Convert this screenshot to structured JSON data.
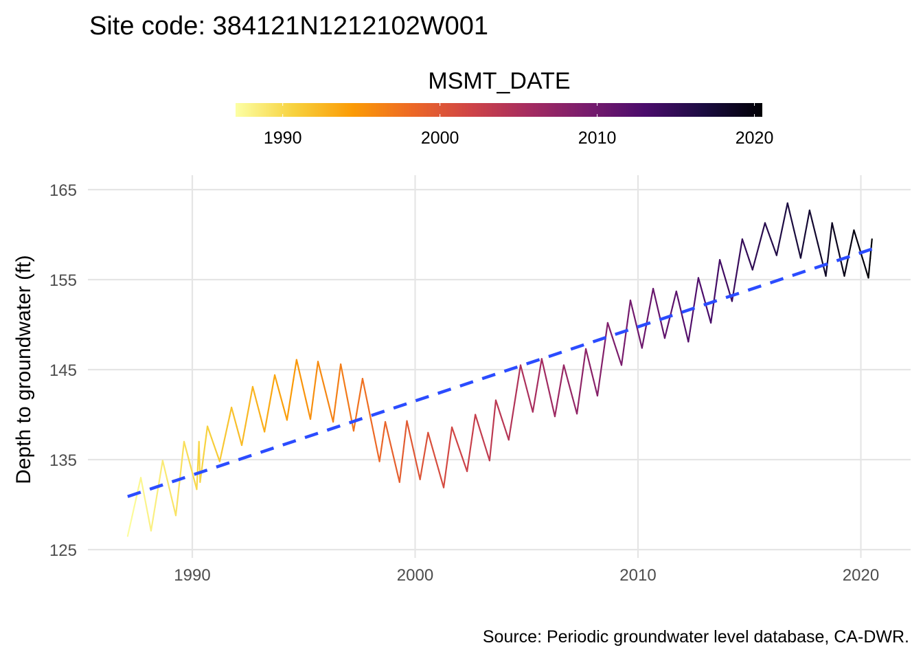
{
  "chart_data": {
    "type": "line",
    "title": "Site code: 384121N1212102W001",
    "xlabel": "",
    "ylabel": "Depth to groundwater (ft)",
    "caption": "Source: Periodic groundwater level database, CA-DWR.",
    "xlim": [
      1985.5,
      2022.2
    ],
    "ylim": [
      125,
      166.5
    ],
    "x_ticks": [
      1990,
      2000,
      2010,
      2020
    ],
    "x_tick_labels": [
      "1990",
      "2000",
      "2010",
      "2020"
    ],
    "y_ticks": [
      125,
      135,
      145,
      155,
      165
    ],
    "y_tick_labels": [
      "125",
      "135",
      "145",
      "155",
      "165"
    ],
    "grid": true,
    "legend": {
      "title": "MSMT_DATE",
      "placement": "top",
      "type": "colorbar",
      "range": [
        1987.0,
        2020.5
      ],
      "ticks": [
        1990,
        2000,
        2010,
        2020
      ],
      "tick_labels": [
        "1990",
        "2000",
        "2010",
        "2020"
      ],
      "colormap": [
        "#fcffa4",
        "#f7d13d",
        "#fb9b06",
        "#ed6925",
        "#cf4446",
        "#a52c60",
        "#781c6d",
        "#4a0c6b",
        "#1b0c41",
        "#000004"
      ]
    },
    "series": [
      {
        "name": "Depth to groundwater",
        "x": [
          1987.1,
          1987.69,
          1988.15,
          1988.67,
          1989.26,
          1989.63,
          1990.2,
          1990.3,
          1990.35,
          1990.68,
          1991.23,
          1991.76,
          1992.22,
          1992.71,
          1993.24,
          1993.7,
          1994.25,
          1994.68,
          1995.3,
          1995.64,
          1996.32,
          1996.66,
          1997.24,
          1997.64,
          1998.4,
          1998.66,
          1999.3,
          1999.63,
          2000.22,
          2000.58,
          2001.28,
          2001.65,
          2002.33,
          2002.7,
          2003.34,
          2003.62,
          2004.2,
          2004.73,
          2005.28,
          2005.68,
          2006.27,
          2006.67,
          2007.26,
          2007.66,
          2008.18,
          2008.64,
          2009.26,
          2009.66,
          2010.18,
          2010.68,
          2011.2,
          2011.72,
          2012.26,
          2012.71,
          2013.27,
          2013.67,
          2014.22,
          2014.68,
          2015.14,
          2015.7,
          2016.22,
          2016.71,
          2017.3,
          2017.7,
          2018.43,
          2018.71,
          2019.26,
          2019.69,
          2020.34,
          2020.5
        ],
        "y": [
          126.5,
          133.0,
          127.1,
          134.9,
          128.8,
          137.0,
          131.7,
          137.0,
          132.5,
          138.7,
          134.8,
          140.8,
          136.6,
          143.1,
          138.1,
          144.4,
          139.4,
          146.1,
          139.5,
          145.9,
          139.2,
          145.6,
          138.2,
          144.0,
          134.8,
          139.2,
          132.5,
          139.3,
          132.8,
          138.0,
          131.9,
          138.6,
          133.7,
          140.0,
          134.9,
          141.6,
          137.2,
          145.5,
          140.3,
          146.2,
          139.8,
          145.5,
          140.1,
          147.3,
          142.1,
          150.2,
          145.5,
          152.7,
          147.4,
          154.0,
          148.5,
          153.7,
          148.1,
          155.2,
          150.2,
          157.2,
          152.6,
          159.5,
          156.1,
          161.3,
          157.7,
          163.5,
          157.4,
          162.7,
          155.4,
          161.3,
          155.4,
          160.5,
          155.2,
          159.5
        ]
      },
      {
        "name": "Linear trend",
        "style": "dashed",
        "color": "#2b4cff",
        "x": [
          1987.1,
          2020.5
        ],
        "y": [
          130.9,
          158.4
        ]
      }
    ]
  }
}
